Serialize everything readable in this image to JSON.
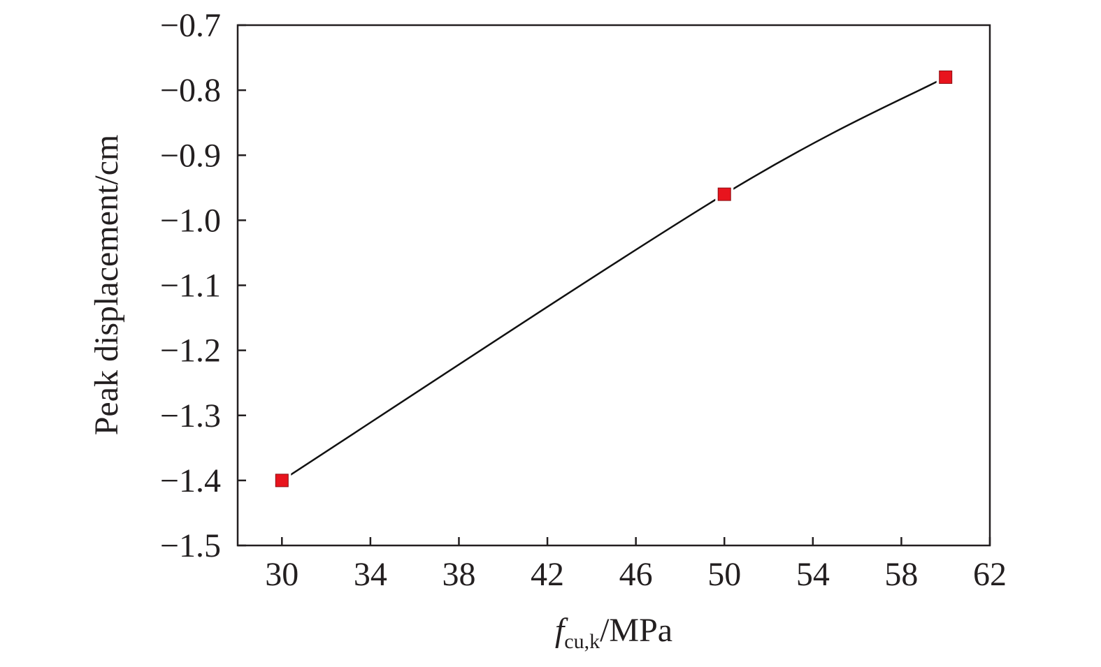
{
  "chart_data": {
    "type": "line",
    "title": "",
    "xlabel": {
      "main": "f",
      "subscript": "cu,k",
      "unit": "/MPa"
    },
    "ylabel": "Peak displacement/cm",
    "xlim": [
      28,
      62
    ],
    "ylim": [
      -1.5,
      -0.7
    ],
    "x_ticks": [
      30,
      34,
      38,
      42,
      46,
      50,
      54,
      58,
      62
    ],
    "x_tick_labels": [
      "30",
      "34",
      "38",
      "42",
      "46",
      "50",
      "54",
      "58",
      "62"
    ],
    "y_ticks": [
      -1.5,
      -1.4,
      -1.3,
      -1.2,
      -1.1,
      -1.0,
      -0.9,
      -0.8,
      -0.7
    ],
    "y_tick_labels": [
      "−1.5",
      "−1.4",
      "−1.3",
      "−1.2",
      "−1.1",
      "−1.0",
      "−0.9",
      "−0.8",
      "−0.7"
    ],
    "grid": false,
    "legend": "none",
    "series": [
      {
        "x": [
          30,
          50,
          60
        ],
        "y": [
          -1.4,
          -0.96,
          -0.78
        ],
        "marker": "square",
        "marker_color": "#e8141d",
        "line_color": "#111111",
        "smooth": true
      }
    ]
  }
}
